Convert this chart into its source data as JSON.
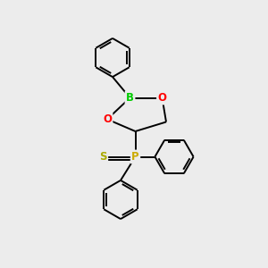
{
  "background_color": "#ececec",
  "bond_color": "#000000",
  "atom_colors": {
    "B": "#00cc00",
    "O": "#ff0000",
    "P": "#ccaa00",
    "S": "#aaaa00",
    "C": "#000000"
  },
  "figsize": [
    3.0,
    3.0
  ],
  "dpi": 100,
  "lw": 1.4,
  "hex_r": 0.72,
  "font_size": 8.5
}
